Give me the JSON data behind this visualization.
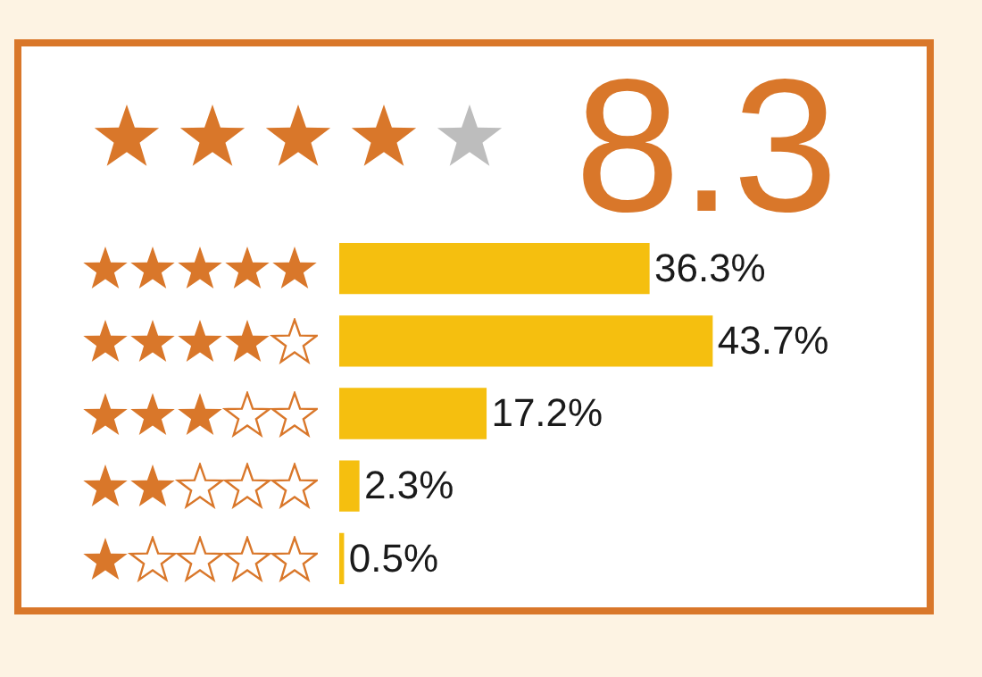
{
  "chart_data": {
    "type": "bar",
    "orientation": "horizontal",
    "title": "8.3",
    "categories": [
      null,
      null,
      null,
      null,
      null
    ],
    "values": [
      36.3,
      43.7,
      17.2,
      2.3,
      0.5
    ],
    "value_labels": [
      "36.3%",
      "43.7%",
      "17.2%",
      "2.3%",
      "0.5%"
    ],
    "color": "#f5bf0f",
    "grid": false,
    "legend": false,
    "tick_labels": false
  }
}
